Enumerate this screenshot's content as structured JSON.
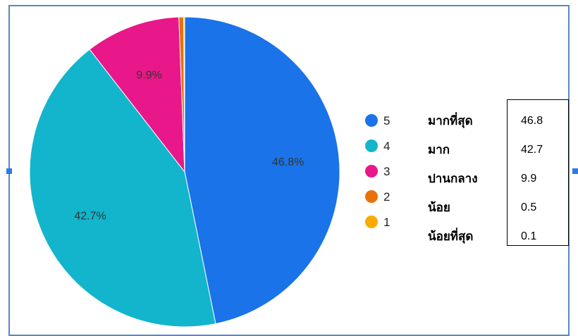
{
  "chart_data": {
    "type": "pie",
    "slices": [
      {
        "label": "5",
        "value": 46.8,
        "slice_label": "46.8%",
        "color": "#1a73e8"
      },
      {
        "label": "4",
        "value": 42.7,
        "slice_label": "42.7%",
        "color": "#12b5cb"
      },
      {
        "label": "3",
        "value": 9.9,
        "slice_label": "9.9%",
        "color": "#e8178a"
      },
      {
        "label": "2",
        "value": 0.5,
        "slice_label": "",
        "color": "#e8710a"
      },
      {
        "label": "1",
        "value": 0.1,
        "slice_label": "",
        "color": "#f9ab00"
      }
    ],
    "legend_position": "right"
  },
  "annotations": {
    "labels": [
      "มากที่สุด",
      "มาก",
      "ปานกลาง",
      "น้อย",
      "น้อยที่สุด"
    ],
    "values": [
      "46.8",
      "42.7",
      "9.9",
      "0.5",
      "0.1"
    ]
  },
  "colors": {
    "frame_border": "#5b86c6",
    "handle": "#2d7be4"
  }
}
